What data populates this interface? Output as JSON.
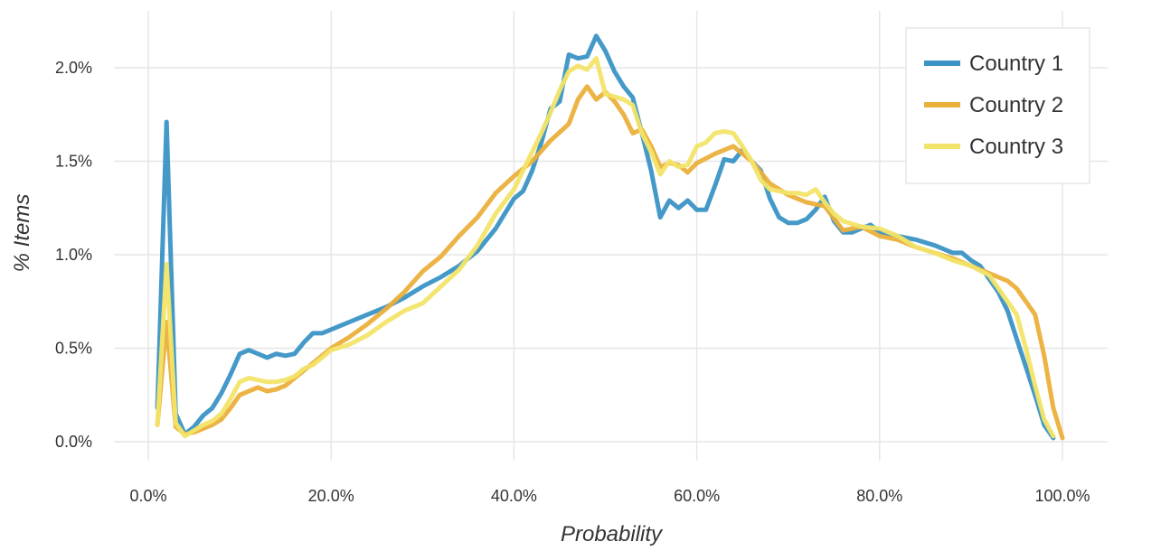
{
  "chart_data": {
    "type": "line",
    "title": "",
    "xlabel": "Probability",
    "ylabel": "% Items",
    "xlim": [
      0,
      1
    ],
    "ylim": [
      0,
      0.022
    ],
    "x_ticks": [
      0.0,
      0.2,
      0.4,
      0.6,
      0.8,
      1.0
    ],
    "x_tick_labels": [
      "0.0%",
      "20.0%",
      "40.0%",
      "60.0%",
      "80.0%",
      "100.0%"
    ],
    "y_ticks": [
      0.0,
      0.005,
      0.01,
      0.015,
      0.02
    ],
    "y_tick_labels": [
      "0.0%",
      "0.5%",
      "1.0%",
      "1.5%",
      "2.0%"
    ],
    "grid": true,
    "legend_position": "top-right",
    "series": [
      {
        "name": "Country 1",
        "color": "#3A93C6",
        "points": [
          [
            0.01,
            0.0018
          ],
          [
            0.02,
            0.0171
          ],
          [
            0.03,
            0.0015
          ],
          [
            0.04,
            0.0004
          ],
          [
            0.05,
            0.0008
          ],
          [
            0.06,
            0.0014
          ],
          [
            0.07,
            0.0018
          ],
          [
            0.08,
            0.0026
          ],
          [
            0.09,
            0.0036
          ],
          [
            0.1,
            0.0047
          ],
          [
            0.11,
            0.0049
          ],
          [
            0.12,
            0.0047
          ],
          [
            0.13,
            0.0045
          ],
          [
            0.14,
            0.0047
          ],
          [
            0.15,
            0.0046
          ],
          [
            0.16,
            0.0047
          ],
          [
            0.17,
            0.0053
          ],
          [
            0.18,
            0.0058
          ],
          [
            0.19,
            0.0058
          ],
          [
            0.2,
            0.006
          ],
          [
            0.22,
            0.0064
          ],
          [
            0.24,
            0.0068
          ],
          [
            0.26,
            0.0072
          ],
          [
            0.28,
            0.0077
          ],
          [
            0.3,
            0.0083
          ],
          [
            0.32,
            0.0088
          ],
          [
            0.34,
            0.0094
          ],
          [
            0.36,
            0.0102
          ],
          [
            0.38,
            0.0114
          ],
          [
            0.4,
            0.013
          ],
          [
            0.41,
            0.0134
          ],
          [
            0.42,
            0.0145
          ],
          [
            0.43,
            0.016
          ],
          [
            0.44,
            0.0178
          ],
          [
            0.45,
            0.0182
          ],
          [
            0.46,
            0.0207
          ],
          [
            0.47,
            0.0205
          ],
          [
            0.48,
            0.0206
          ],
          [
            0.49,
            0.0217
          ],
          [
            0.5,
            0.0209
          ],
          [
            0.51,
            0.0198
          ],
          [
            0.52,
            0.019
          ],
          [
            0.53,
            0.0184
          ],
          [
            0.54,
            0.0165
          ],
          [
            0.55,
            0.0145
          ],
          [
            0.56,
            0.012
          ],
          [
            0.57,
            0.0129
          ],
          [
            0.58,
            0.0125
          ],
          [
            0.59,
            0.0129
          ],
          [
            0.6,
            0.0124
          ],
          [
            0.61,
            0.0124
          ],
          [
            0.62,
            0.0137
          ],
          [
            0.63,
            0.0151
          ],
          [
            0.64,
            0.015
          ],
          [
            0.65,
            0.0156
          ],
          [
            0.66,
            0.015
          ],
          [
            0.67,
            0.0145
          ],
          [
            0.68,
            0.013
          ],
          [
            0.69,
            0.012
          ],
          [
            0.7,
            0.0117
          ],
          [
            0.71,
            0.0117
          ],
          [
            0.72,
            0.0119
          ],
          [
            0.73,
            0.0124
          ],
          [
            0.74,
            0.0131
          ],
          [
            0.75,
            0.0118
          ],
          [
            0.76,
            0.0112
          ],
          [
            0.77,
            0.0112
          ],
          [
            0.78,
            0.0114
          ],
          [
            0.79,
            0.0116
          ],
          [
            0.8,
            0.0112
          ],
          [
            0.82,
            0.011
          ],
          [
            0.84,
            0.0108
          ],
          [
            0.86,
            0.0105
          ],
          [
            0.88,
            0.0101
          ],
          [
            0.89,
            0.0101
          ],
          [
            0.9,
            0.0097
          ],
          [
            0.91,
            0.0094
          ],
          [
            0.92,
            0.0087
          ],
          [
            0.93,
            0.008
          ],
          [
            0.94,
            0.007
          ],
          [
            0.95,
            0.0055
          ],
          [
            0.96,
            0.004
          ],
          [
            0.97,
            0.0025
          ],
          [
            0.98,
            0.0009
          ],
          [
            0.99,
            0.0002
          ]
        ]
      },
      {
        "name": "Country 2",
        "color": "#EBAF3B",
        "points": [
          [
            0.01,
            0.0009
          ],
          [
            0.02,
            0.0064
          ],
          [
            0.03,
            0.0008
          ],
          [
            0.04,
            0.0004
          ],
          [
            0.05,
            0.0005
          ],
          [
            0.06,
            0.0007
          ],
          [
            0.07,
            0.0009
          ],
          [
            0.08,
            0.0012
          ],
          [
            0.09,
            0.0018
          ],
          [
            0.1,
            0.0025
          ],
          [
            0.11,
            0.0027
          ],
          [
            0.12,
            0.0029
          ],
          [
            0.13,
            0.0027
          ],
          [
            0.14,
            0.0028
          ],
          [
            0.15,
            0.003
          ],
          [
            0.16,
            0.0034
          ],
          [
            0.17,
            0.0038
          ],
          [
            0.18,
            0.0042
          ],
          [
            0.19,
            0.0046
          ],
          [
            0.2,
            0.005
          ],
          [
            0.22,
            0.0056
          ],
          [
            0.24,
            0.0063
          ],
          [
            0.26,
            0.0071
          ],
          [
            0.28,
            0.008
          ],
          [
            0.3,
            0.0091
          ],
          [
            0.32,
            0.0099
          ],
          [
            0.34,
            0.011
          ],
          [
            0.36,
            0.012
          ],
          [
            0.38,
            0.0133
          ],
          [
            0.4,
            0.0142
          ],
          [
            0.42,
            0.015
          ],
          [
            0.44,
            0.0161
          ],
          [
            0.46,
            0.017
          ],
          [
            0.47,
            0.0183
          ],
          [
            0.48,
            0.019
          ],
          [
            0.49,
            0.0183
          ],
          [
            0.5,
            0.0187
          ],
          [
            0.51,
            0.0182
          ],
          [
            0.52,
            0.0175
          ],
          [
            0.53,
            0.0165
          ],
          [
            0.54,
            0.0167
          ],
          [
            0.55,
            0.0158
          ],
          [
            0.56,
            0.0147
          ],
          [
            0.57,
            0.0149
          ],
          [
            0.58,
            0.0148
          ],
          [
            0.59,
            0.0144
          ],
          [
            0.6,
            0.0149
          ],
          [
            0.62,
            0.0154
          ],
          [
            0.64,
            0.0158
          ],
          [
            0.66,
            0.015
          ],
          [
            0.68,
            0.0138
          ],
          [
            0.7,
            0.0132
          ],
          [
            0.72,
            0.0128
          ],
          [
            0.74,
            0.0126
          ],
          [
            0.76,
            0.0113
          ],
          [
            0.78,
            0.0115
          ],
          [
            0.8,
            0.011
          ],
          [
            0.82,
            0.0108
          ],
          [
            0.84,
            0.0104
          ],
          [
            0.86,
            0.0101
          ],
          [
            0.88,
            0.0098
          ],
          [
            0.9,
            0.0094
          ],
          [
            0.92,
            0.009
          ],
          [
            0.94,
            0.0086
          ],
          [
            0.95,
            0.0082
          ],
          [
            0.96,
            0.0075
          ],
          [
            0.97,
            0.0068
          ],
          [
            0.98,
            0.0046
          ],
          [
            0.99,
            0.0018
          ],
          [
            1.0,
            0.0002
          ]
        ]
      },
      {
        "name": "Country 3",
        "color": "#F2E468",
        "points": [
          [
            0.01,
            0.0009
          ],
          [
            0.02,
            0.0095
          ],
          [
            0.03,
            0.001
          ],
          [
            0.04,
            0.0003
          ],
          [
            0.05,
            0.0006
          ],
          [
            0.06,
            0.0009
          ],
          [
            0.07,
            0.0011
          ],
          [
            0.08,
            0.0015
          ],
          [
            0.09,
            0.0023
          ],
          [
            0.1,
            0.0032
          ],
          [
            0.11,
            0.0034
          ],
          [
            0.12,
            0.0033
          ],
          [
            0.13,
            0.0032
          ],
          [
            0.14,
            0.0032
          ],
          [
            0.15,
            0.0033
          ],
          [
            0.16,
            0.0035
          ],
          [
            0.17,
            0.0039
          ],
          [
            0.18,
            0.0041
          ],
          [
            0.19,
            0.0045
          ],
          [
            0.2,
            0.0049
          ],
          [
            0.22,
            0.0052
          ],
          [
            0.24,
            0.0057
          ],
          [
            0.26,
            0.0064
          ],
          [
            0.28,
            0.007
          ],
          [
            0.3,
            0.0074
          ],
          [
            0.32,
            0.0083
          ],
          [
            0.34,
            0.0092
          ],
          [
            0.36,
            0.0105
          ],
          [
            0.38,
            0.0122
          ],
          [
            0.4,
            0.0135
          ],
          [
            0.41,
            0.0145
          ],
          [
            0.42,
            0.0155
          ],
          [
            0.43,
            0.0165
          ],
          [
            0.44,
            0.0176
          ],
          [
            0.45,
            0.0188
          ],
          [
            0.46,
            0.0198
          ],
          [
            0.47,
            0.0201
          ],
          [
            0.48,
            0.0199
          ],
          [
            0.49,
            0.0205
          ],
          [
            0.5,
            0.0186
          ],
          [
            0.52,
            0.0183
          ],
          [
            0.53,
            0.018
          ],
          [
            0.54,
            0.0165
          ],
          [
            0.55,
            0.0155
          ],
          [
            0.56,
            0.0143
          ],
          [
            0.57,
            0.015
          ],
          [
            0.58,
            0.0147
          ],
          [
            0.59,
            0.0148
          ],
          [
            0.6,
            0.0158
          ],
          [
            0.61,
            0.016
          ],
          [
            0.62,
            0.0165
          ],
          [
            0.63,
            0.0166
          ],
          [
            0.64,
            0.0165
          ],
          [
            0.65,
            0.0158
          ],
          [
            0.66,
            0.015
          ],
          [
            0.67,
            0.014
          ],
          [
            0.68,
            0.0135
          ],
          [
            0.69,
            0.0134
          ],
          [
            0.7,
            0.0133
          ],
          [
            0.71,
            0.0133
          ],
          [
            0.72,
            0.0132
          ],
          [
            0.73,
            0.0135
          ],
          [
            0.74,
            0.0128
          ],
          [
            0.75,
            0.0122
          ],
          [
            0.76,
            0.0118
          ],
          [
            0.78,
            0.0115
          ],
          [
            0.8,
            0.0114
          ],
          [
            0.82,
            0.011
          ],
          [
            0.84,
            0.0104
          ],
          [
            0.86,
            0.0101
          ],
          [
            0.88,
            0.0097
          ],
          [
            0.9,
            0.0094
          ],
          [
            0.92,
            0.0089
          ],
          [
            0.93,
            0.0082
          ],
          [
            0.94,
            0.0075
          ],
          [
            0.95,
            0.0068
          ],
          [
            0.96,
            0.005
          ],
          [
            0.97,
            0.003
          ],
          [
            0.98,
            0.0012
          ],
          [
            0.99,
            0.0003
          ]
        ]
      }
    ]
  }
}
